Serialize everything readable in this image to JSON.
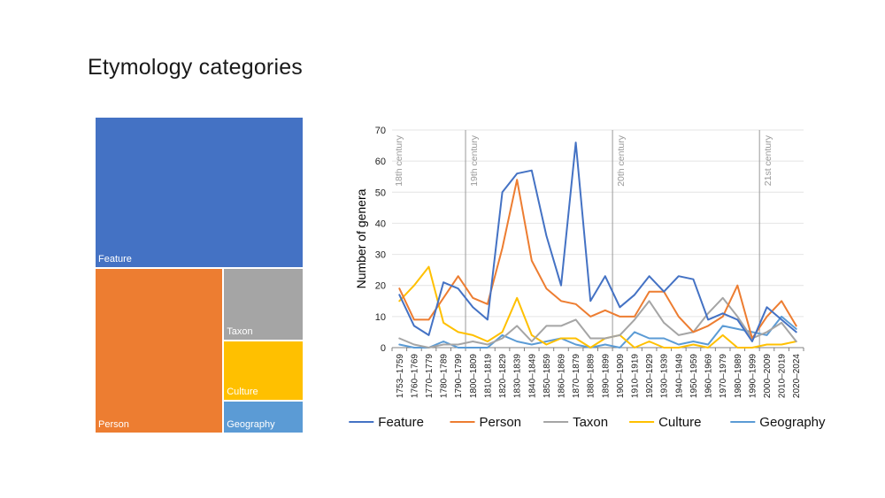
{
  "slide": {
    "title": "Etymology categories"
  },
  "colors": {
    "Feature": "#4472c4",
    "Person": "#ed7d31",
    "Taxon": "#a5a5a5",
    "Culture": "#ffc000",
    "Geography": "#5b9bd5"
  },
  "chart_data": [
    {
      "type": "treemap",
      "categories": [
        "Feature",
        "Person",
        "Taxon",
        "Culture",
        "Geography"
      ],
      "values": [
        536,
        360,
        99,
        82,
        44
      ]
    },
    {
      "type": "line",
      "ylabel": "Number of genera",
      "ylim": [
        0,
        70
      ],
      "yticks": [
        0,
        10,
        20,
        30,
        40,
        50,
        60,
        70
      ],
      "grid": true,
      "legend": "bottom",
      "categories": [
        "1753–1759",
        "1760–1769",
        "1770–1779",
        "1780–1789",
        "1790–1799",
        "1800–1809",
        "1810–1819",
        "1820–1829",
        "1830–1839",
        "1840–1849",
        "1850–1859",
        "1860–1869",
        "1870–1879",
        "1880–1889",
        "1890–1899",
        "1900–1909",
        "1910–1919",
        "1920–1929",
        "1930–1939",
        "1940–1949",
        "1950–1959",
        "1960–1969",
        "1970–1979",
        "1980–1989",
        "1990–1999",
        "2000–2009",
        "2010–2019",
        "2020–2024"
      ],
      "annotations": [
        {
          "label": "18th century",
          "at": "1753–1759",
          "divider": false
        },
        {
          "label": "19th century",
          "at": "1800–1809",
          "divider": true
        },
        {
          "label": "20th century",
          "at": "1900–1909",
          "divider": true
        },
        {
          "label": "21st century",
          "at": "2000–2009",
          "divider": true
        }
      ],
      "series": [
        {
          "name": "Feature",
          "values": [
            17,
            7,
            4,
            21,
            19,
            13,
            9,
            50,
            56,
            57,
            36,
            20,
            66,
            15,
            23,
            13,
            17,
            23,
            18,
            23,
            22,
            9,
            11,
            9,
            2,
            13,
            9,
            5
          ]
        },
        {
          "name": "Person",
          "values": [
            19,
            9,
            9,
            16,
            23,
            16,
            14,
            32,
            54,
            28,
            19,
            15,
            14,
            10,
            12,
            10,
            10,
            18,
            18,
            10,
            5,
            7,
            10,
            20,
            3,
            10,
            15,
            7
          ]
        },
        {
          "name": "Taxon",
          "values": [
            3,
            1,
            0,
            1,
            1,
            2,
            1,
            3,
            7,
            2,
            7,
            7,
            9,
            3,
            3,
            4,
            9,
            15,
            8,
            4,
            5,
            11,
            16,
            10,
            3,
            5,
            8,
            2
          ]
        },
        {
          "name": "Culture",
          "values": [
            15,
            20,
            26,
            8,
            5,
            4,
            2,
            5,
            16,
            4,
            1,
            3,
            3,
            0,
            3,
            4,
            0,
            2,
            0,
            0,
            1,
            0,
            4,
            0,
            0,
            1,
            1,
            2
          ]
        },
        {
          "name": "Geography",
          "values": [
            1,
            0,
            0,
            2,
            0,
            0,
            0,
            4,
            2,
            1,
            2,
            3,
            1,
            0,
            1,
            0,
            5,
            3,
            3,
            1,
            2,
            1,
            7,
            6,
            5,
            4,
            10,
            6
          ]
        }
      ]
    }
  ]
}
